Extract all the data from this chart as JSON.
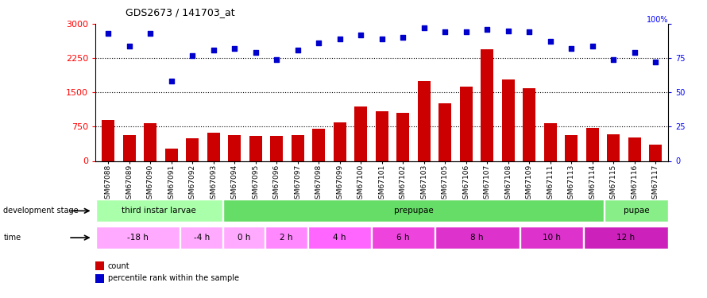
{
  "title": "GDS2673 / 141703_at",
  "samples": [
    "GSM67088",
    "GSM67089",
    "GSM67090",
    "GSM67091",
    "GSM67092",
    "GSM67093",
    "GSM67094",
    "GSM67095",
    "GSM67096",
    "GSM67097",
    "GSM67098",
    "GSM67099",
    "GSM67100",
    "GSM67101",
    "GSM67102",
    "GSM67103",
    "GSM67105",
    "GSM67106",
    "GSM67107",
    "GSM67108",
    "GSM67109",
    "GSM67111",
    "GSM67113",
    "GSM67114",
    "GSM67115",
    "GSM67116",
    "GSM67117"
  ],
  "counts": [
    900,
    560,
    820,
    270,
    500,
    620,
    560,
    550,
    540,
    570,
    700,
    850,
    1190,
    1090,
    1060,
    1740,
    1260,
    1630,
    2440,
    1790,
    1590,
    820,
    570,
    720,
    580,
    520,
    360
  ],
  "percentiles": [
    93,
    84,
    93,
    58,
    77,
    81,
    82,
    79,
    74,
    81,
    86,
    89,
    92,
    89,
    90,
    97,
    94,
    94,
    96,
    95,
    94,
    87,
    82,
    84,
    74,
    79,
    72
  ],
  "ylim_left": [
    0,
    3000
  ],
  "ylim_right": [
    0,
    100
  ],
  "yticks_left": [
    0,
    750,
    1500,
    2250,
    3000
  ],
  "yticks_right": [
    0,
    25,
    50,
    75,
    100
  ],
  "bar_color": "#cc0000",
  "dot_color": "#0000cc",
  "background_color": "#ffffff",
  "dev_stage_row": {
    "label": "development stage",
    "stages": [
      {
        "text": "third instar larvae",
        "color": "#aaffaa",
        "start": 0,
        "end": 6
      },
      {
        "text": "prepupae",
        "color": "#66dd66",
        "start": 6,
        "end": 24
      },
      {
        "text": "pupae",
        "color": "#88ee88",
        "start": 24,
        "end": 27
      }
    ]
  },
  "time_row": {
    "label": "time",
    "times": [
      {
        "text": "-18 h",
        "color": "#ffaaff",
        "start": 0,
        "end": 4
      },
      {
        "text": "-4 h",
        "color": "#ffaaff",
        "start": 4,
        "end": 6
      },
      {
        "text": "0 h",
        "color": "#ffaaff",
        "start": 6,
        "end": 8
      },
      {
        "text": "2 h",
        "color": "#ff88ff",
        "start": 8,
        "end": 10
      },
      {
        "text": "4 h",
        "color": "#ff66ff",
        "start": 10,
        "end": 13
      },
      {
        "text": "6 h",
        "color": "#ee44dd",
        "start": 13,
        "end": 16
      },
      {
        "text": "8 h",
        "color": "#dd33cc",
        "start": 16,
        "end": 20
      },
      {
        "text": "10 h",
        "color": "#dd33cc",
        "start": 20,
        "end": 23
      },
      {
        "text": "12 h",
        "color": "#cc22bb",
        "start": 23,
        "end": 27
      }
    ]
  },
  "legend": [
    {
      "color": "#cc0000",
      "label": "count"
    },
    {
      "color": "#0000cc",
      "label": "percentile rank within the sample"
    }
  ]
}
